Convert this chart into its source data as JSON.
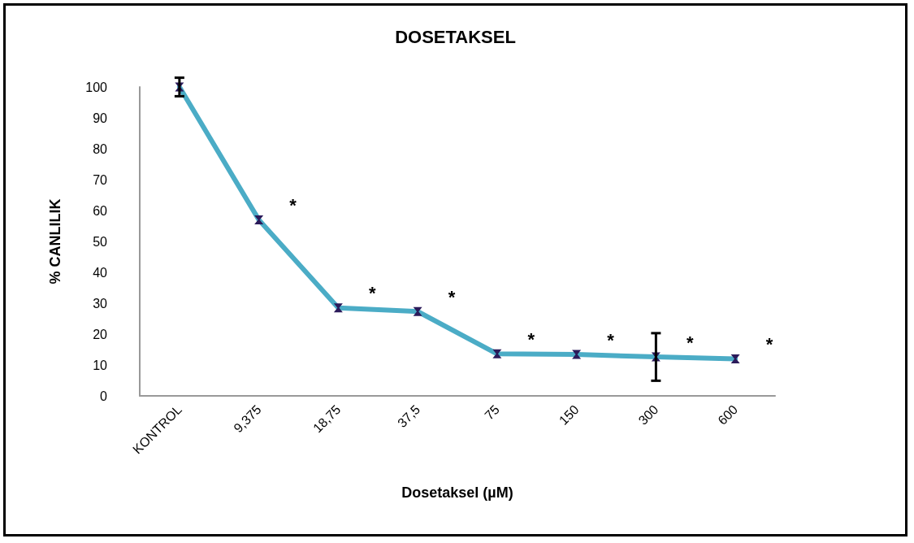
{
  "chart_data": {
    "type": "line",
    "title": "DOSETAKSEL",
    "xlabel": "Dosetaksel (µM)",
    "ylabel": "% CANLILIK",
    "categories": [
      "KONTROL",
      "9,375",
      "18,75",
      "37,5",
      "75",
      "150",
      "300",
      "600"
    ],
    "series": [
      {
        "color": "#4bacc6",
        "values": [
          100,
          57,
          28.5,
          27.3,
          13.6,
          13.4,
          12.6,
          12
        ],
        "errors": [
          3,
          null,
          null,
          null,
          null,
          null,
          7.7,
          null
        ]
      }
    ],
    "ylim": [
      0,
      100
    ],
    "yticks": [
      0,
      10,
      20,
      30,
      40,
      50,
      60,
      70,
      80,
      90,
      100
    ],
    "grid": false,
    "marker": "cross",
    "line_style": "solid",
    "annotations": [
      {
        "text": "*",
        "x": "9,375",
        "y": 57
      },
      {
        "text": "*",
        "x": "18,75",
        "y": 28.5
      },
      {
        "text": "*",
        "x": "37,5",
        "y": 27.3
      },
      {
        "text": "*",
        "x": "75",
        "y": 13.6
      },
      {
        "text": "*",
        "x": "150",
        "y": 13.4
      },
      {
        "text": "*",
        "x": "300",
        "y": 12.6
      },
      {
        "text": "*",
        "x": "600",
        "y": 12
      }
    ]
  }
}
